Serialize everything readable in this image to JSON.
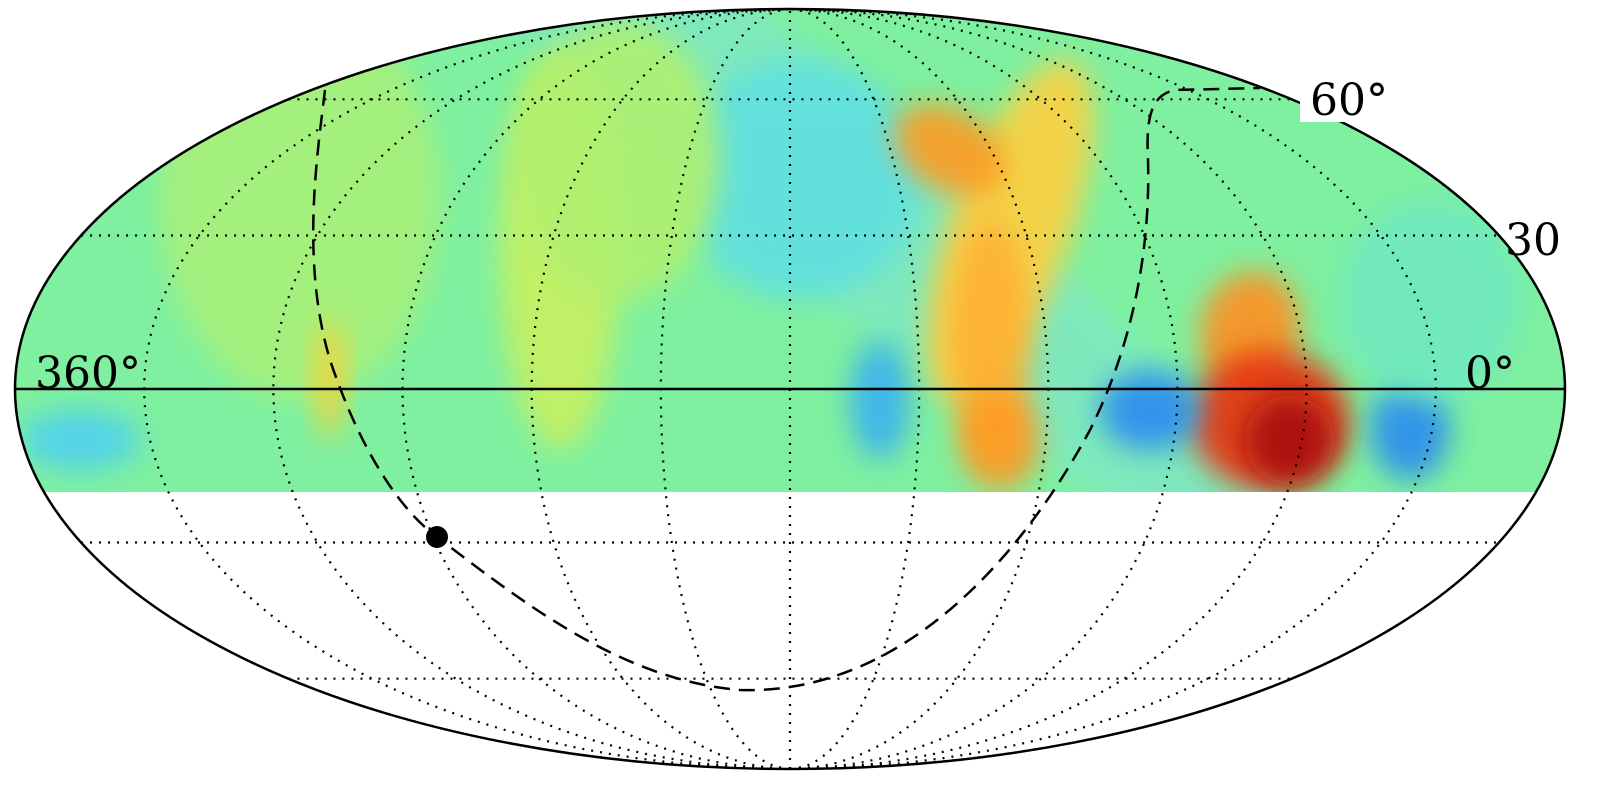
{
  "latitude_labels": [
    "60°",
    "30"
  ],
  "longitude_labels": [
    "360°",
    "0°"
  ]
}
